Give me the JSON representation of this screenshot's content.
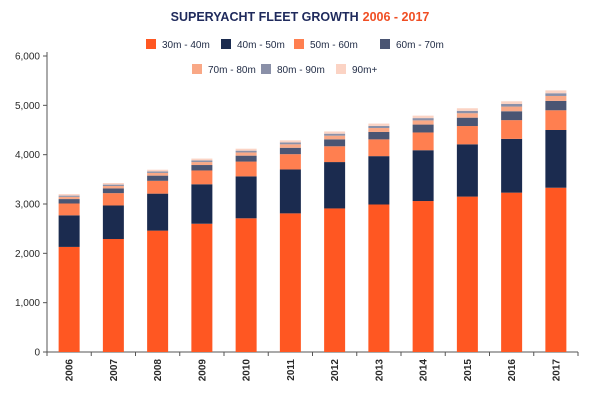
{
  "chart_data": {
    "type": "bar",
    "stacked": true,
    "title": "SUPERYACHT FLEET GROWTH",
    "title_highlight": "2006 - 2017",
    "title_color": "#1f2a5c",
    "title_highlight_color": "#f04e23",
    "categories": [
      "2006",
      "2007",
      "2008",
      "2009",
      "2010",
      "2011",
      "2012",
      "2013",
      "2014",
      "2015",
      "2016",
      "2017"
    ],
    "ylim": [
      0,
      6000
    ],
    "yticks": [
      0,
      1000,
      2000,
      3000,
      4000,
      5000,
      6000
    ],
    "ytick_labels": [
      "0",
      "1,000",
      "2,000",
      "3,000",
      "4,000",
      "5,000",
      "6,000"
    ],
    "grid": false,
    "legend_position": "top",
    "series": [
      {
        "name": "30m - 40m",
        "color": "#ff5722",
        "values": [
          2130,
          2290,
          2460,
          2600,
          2710,
          2810,
          2910,
          2990,
          3060,
          3150,
          3230,
          3330
        ]
      },
      {
        "name": "40m - 50m",
        "color": "#1b2b4f",
        "values": [
          640,
          680,
          750,
          800,
          850,
          890,
          940,
          980,
          1030,
          1060,
          1090,
          1170
        ]
      },
      {
        "name": "50m - 60m",
        "color": "#ff7f50",
        "values": [
          240,
          250,
          260,
          280,
          300,
          310,
          320,
          340,
          360,
          370,
          380,
          400
        ]
      },
      {
        "name": "60m - 70m",
        "color": "#4a5573",
        "values": [
          90,
          95,
          105,
          110,
          120,
          130,
          140,
          150,
          160,
          170,
          180,
          190
        ]
      },
      {
        "name": "70m - 80m",
        "color": "#f9a886",
        "values": [
          45,
          50,
          55,
          60,
          65,
          70,
          75,
          80,
          85,
          90,
          95,
          100
        ]
      },
      {
        "name": "80m - 90m",
        "color": "#8a90a8",
        "values": [
          25,
          28,
          30,
          33,
          36,
          38,
          40,
          43,
          46,
          49,
          52,
          55
        ]
      },
      {
        "name": "90m+",
        "color": "#fbd3c4",
        "values": [
          30,
          32,
          35,
          38,
          40,
          42,
          45,
          47,
          50,
          52,
          55,
          58
        ]
      }
    ]
  }
}
